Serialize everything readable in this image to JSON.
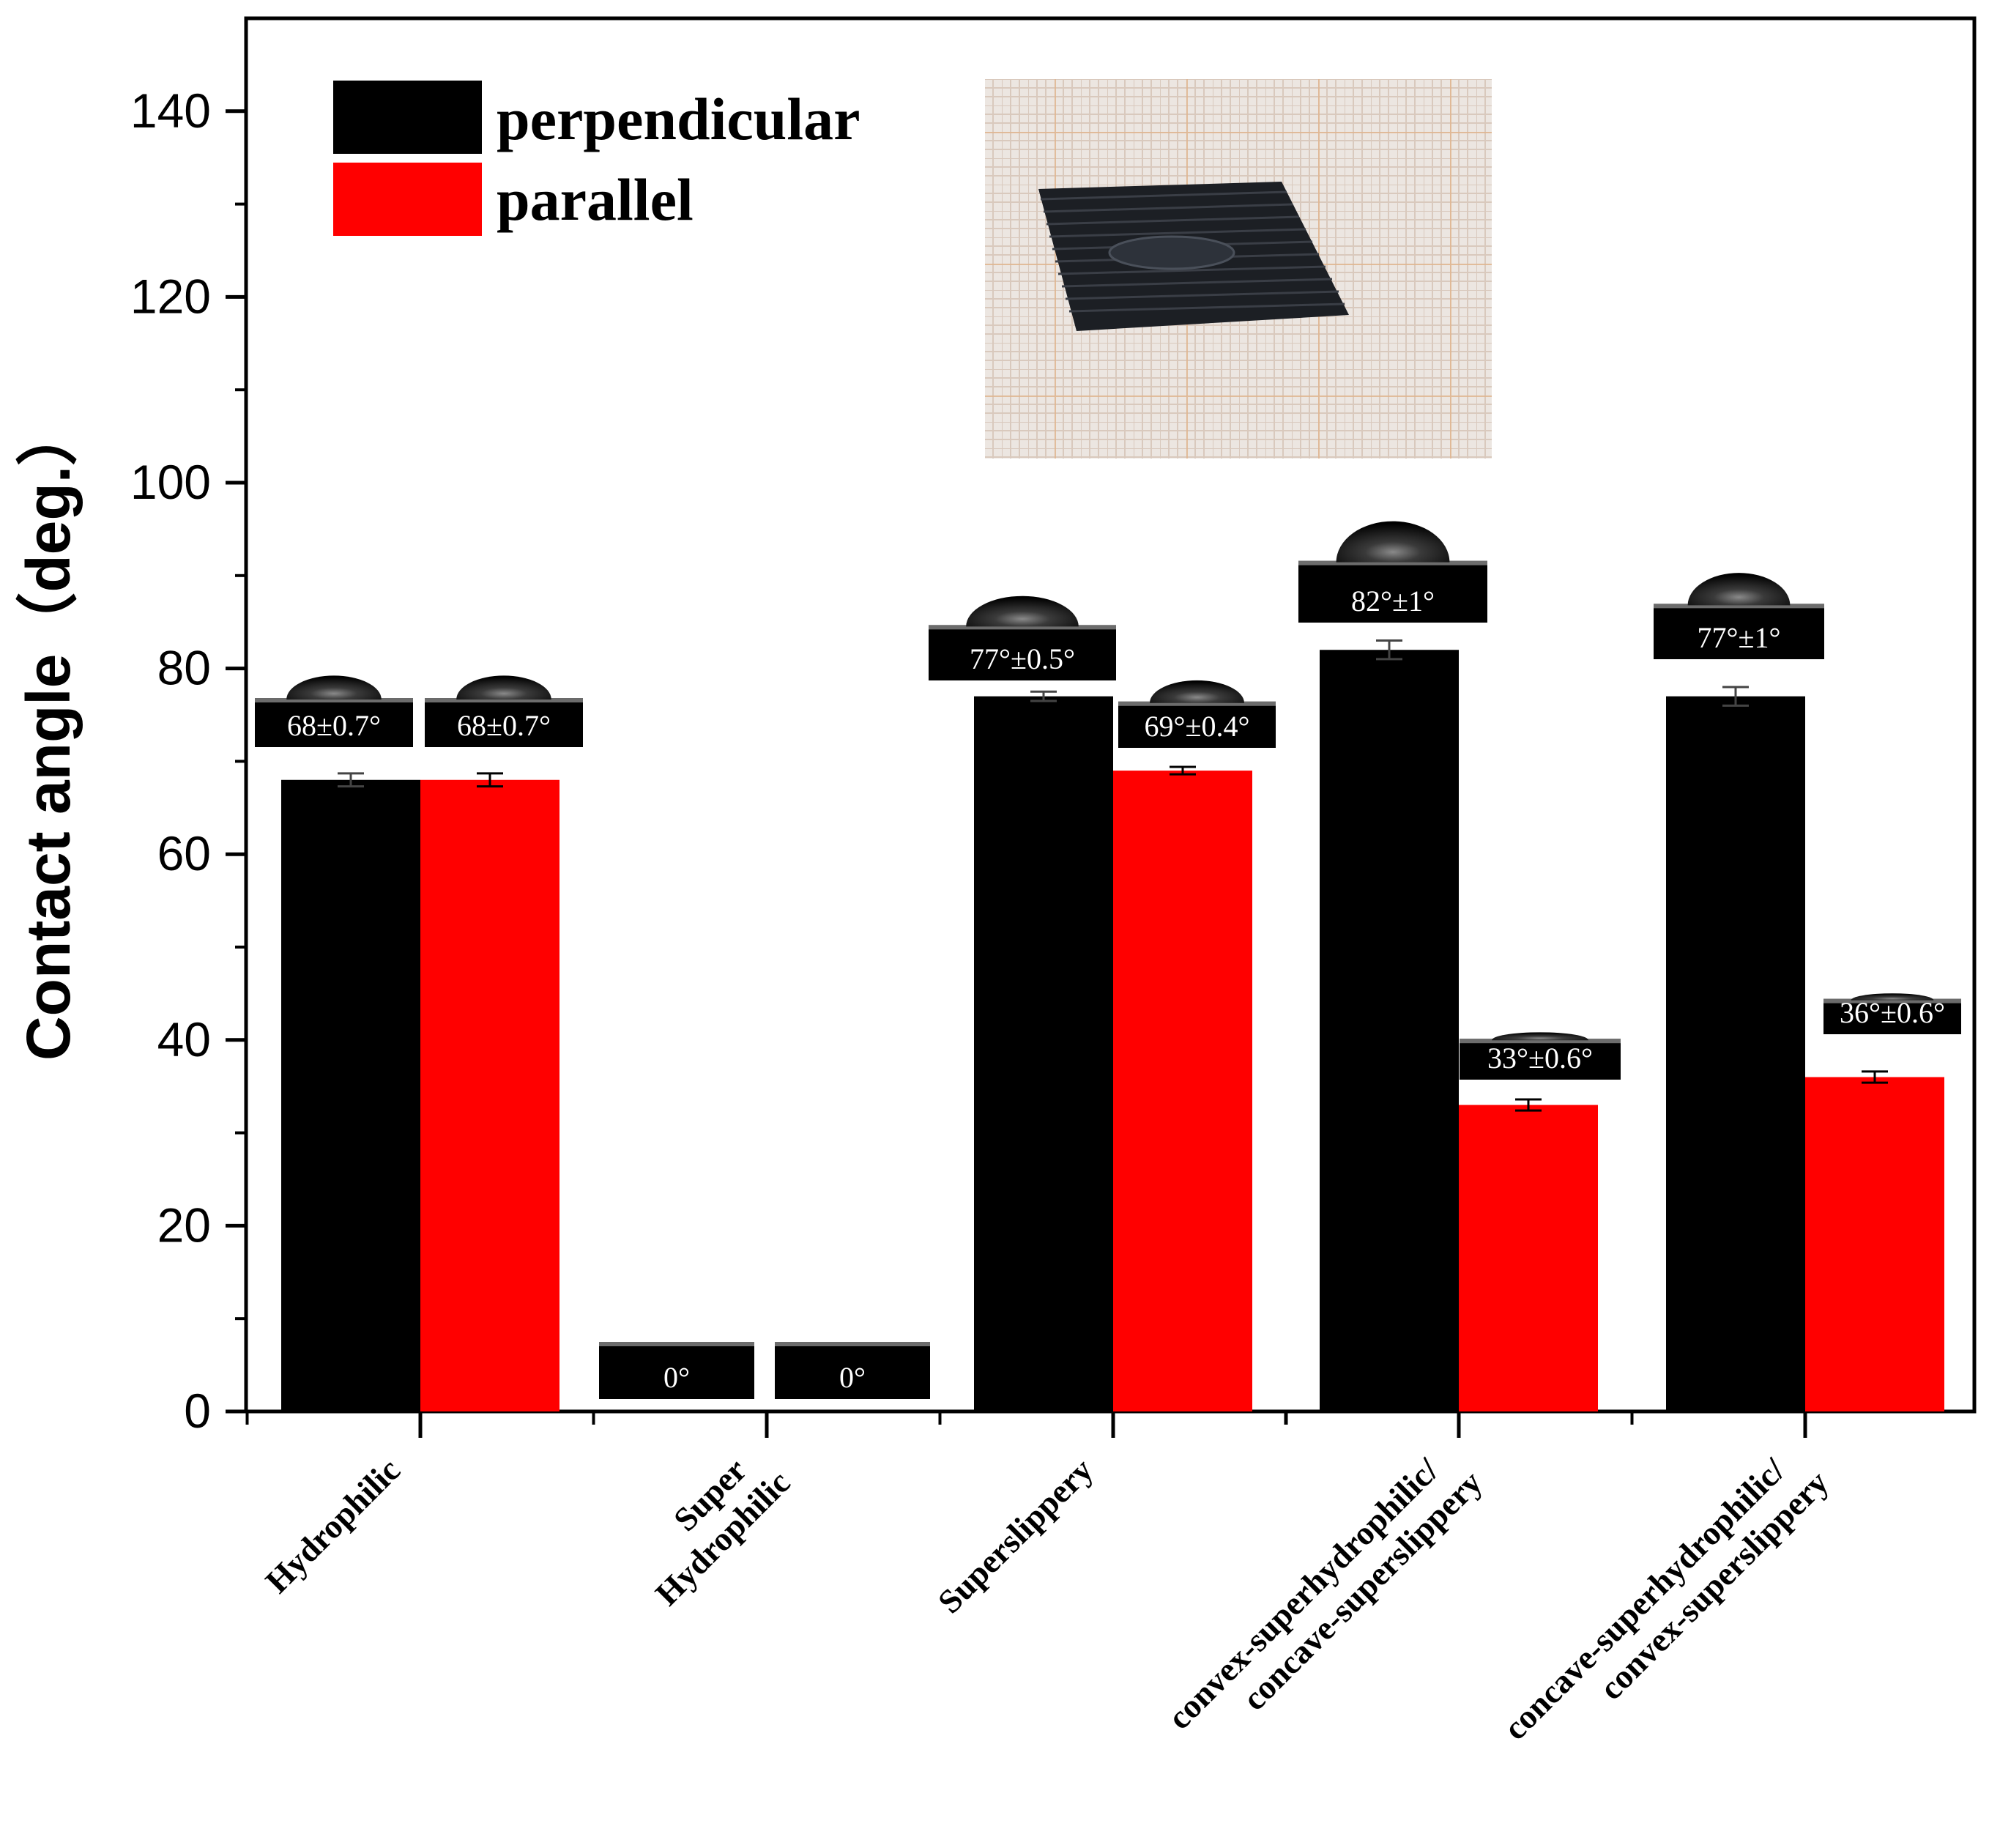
{
  "chart_data": {
    "type": "bar",
    "ylabel": "Contact angle（deg.）",
    "xlabel": "",
    "ylim": [
      0,
      150
    ],
    "yticks": [
      0,
      20,
      40,
      60,
      80,
      100,
      120,
      140
    ],
    "categories": [
      [
        "Hydrophilic"
      ],
      [
        "Super",
        "Hydrophilic"
      ],
      [
        "Superslippery"
      ],
      [
        "convex-superhydrophilic/",
        "concave-superslippery"
      ],
      [
        "concave-superhydrophilic/",
        "convex-superslippery"
      ]
    ],
    "series": [
      {
        "name": "perpendicular",
        "color": "#000000",
        "values": [
          68,
          0,
          77,
          82,
          77
        ],
        "errors": [
          0.7,
          0,
          0.5,
          1,
          1
        ],
        "annotations": [
          "68±0.7°",
          "0°",
          "77°±0.5°",
          "82°±1°",
          "77°±1°"
        ]
      },
      {
        "name": "parallel",
        "color": "#ff0000",
        "values": [
          68,
          0,
          69,
          33,
          36
        ],
        "errors": [
          0.7,
          0,
          0.4,
          0.6,
          0.6
        ],
        "annotations": [
          "68±0.7°",
          "0°",
          "69°±0.4°",
          "33°±0.6°",
          "36°±0.6°"
        ]
      }
    ],
    "legend": {
      "placement": "top-left"
    },
    "inset": {
      "description": "photo",
      "placement": "top-center"
    },
    "grid": false
  }
}
